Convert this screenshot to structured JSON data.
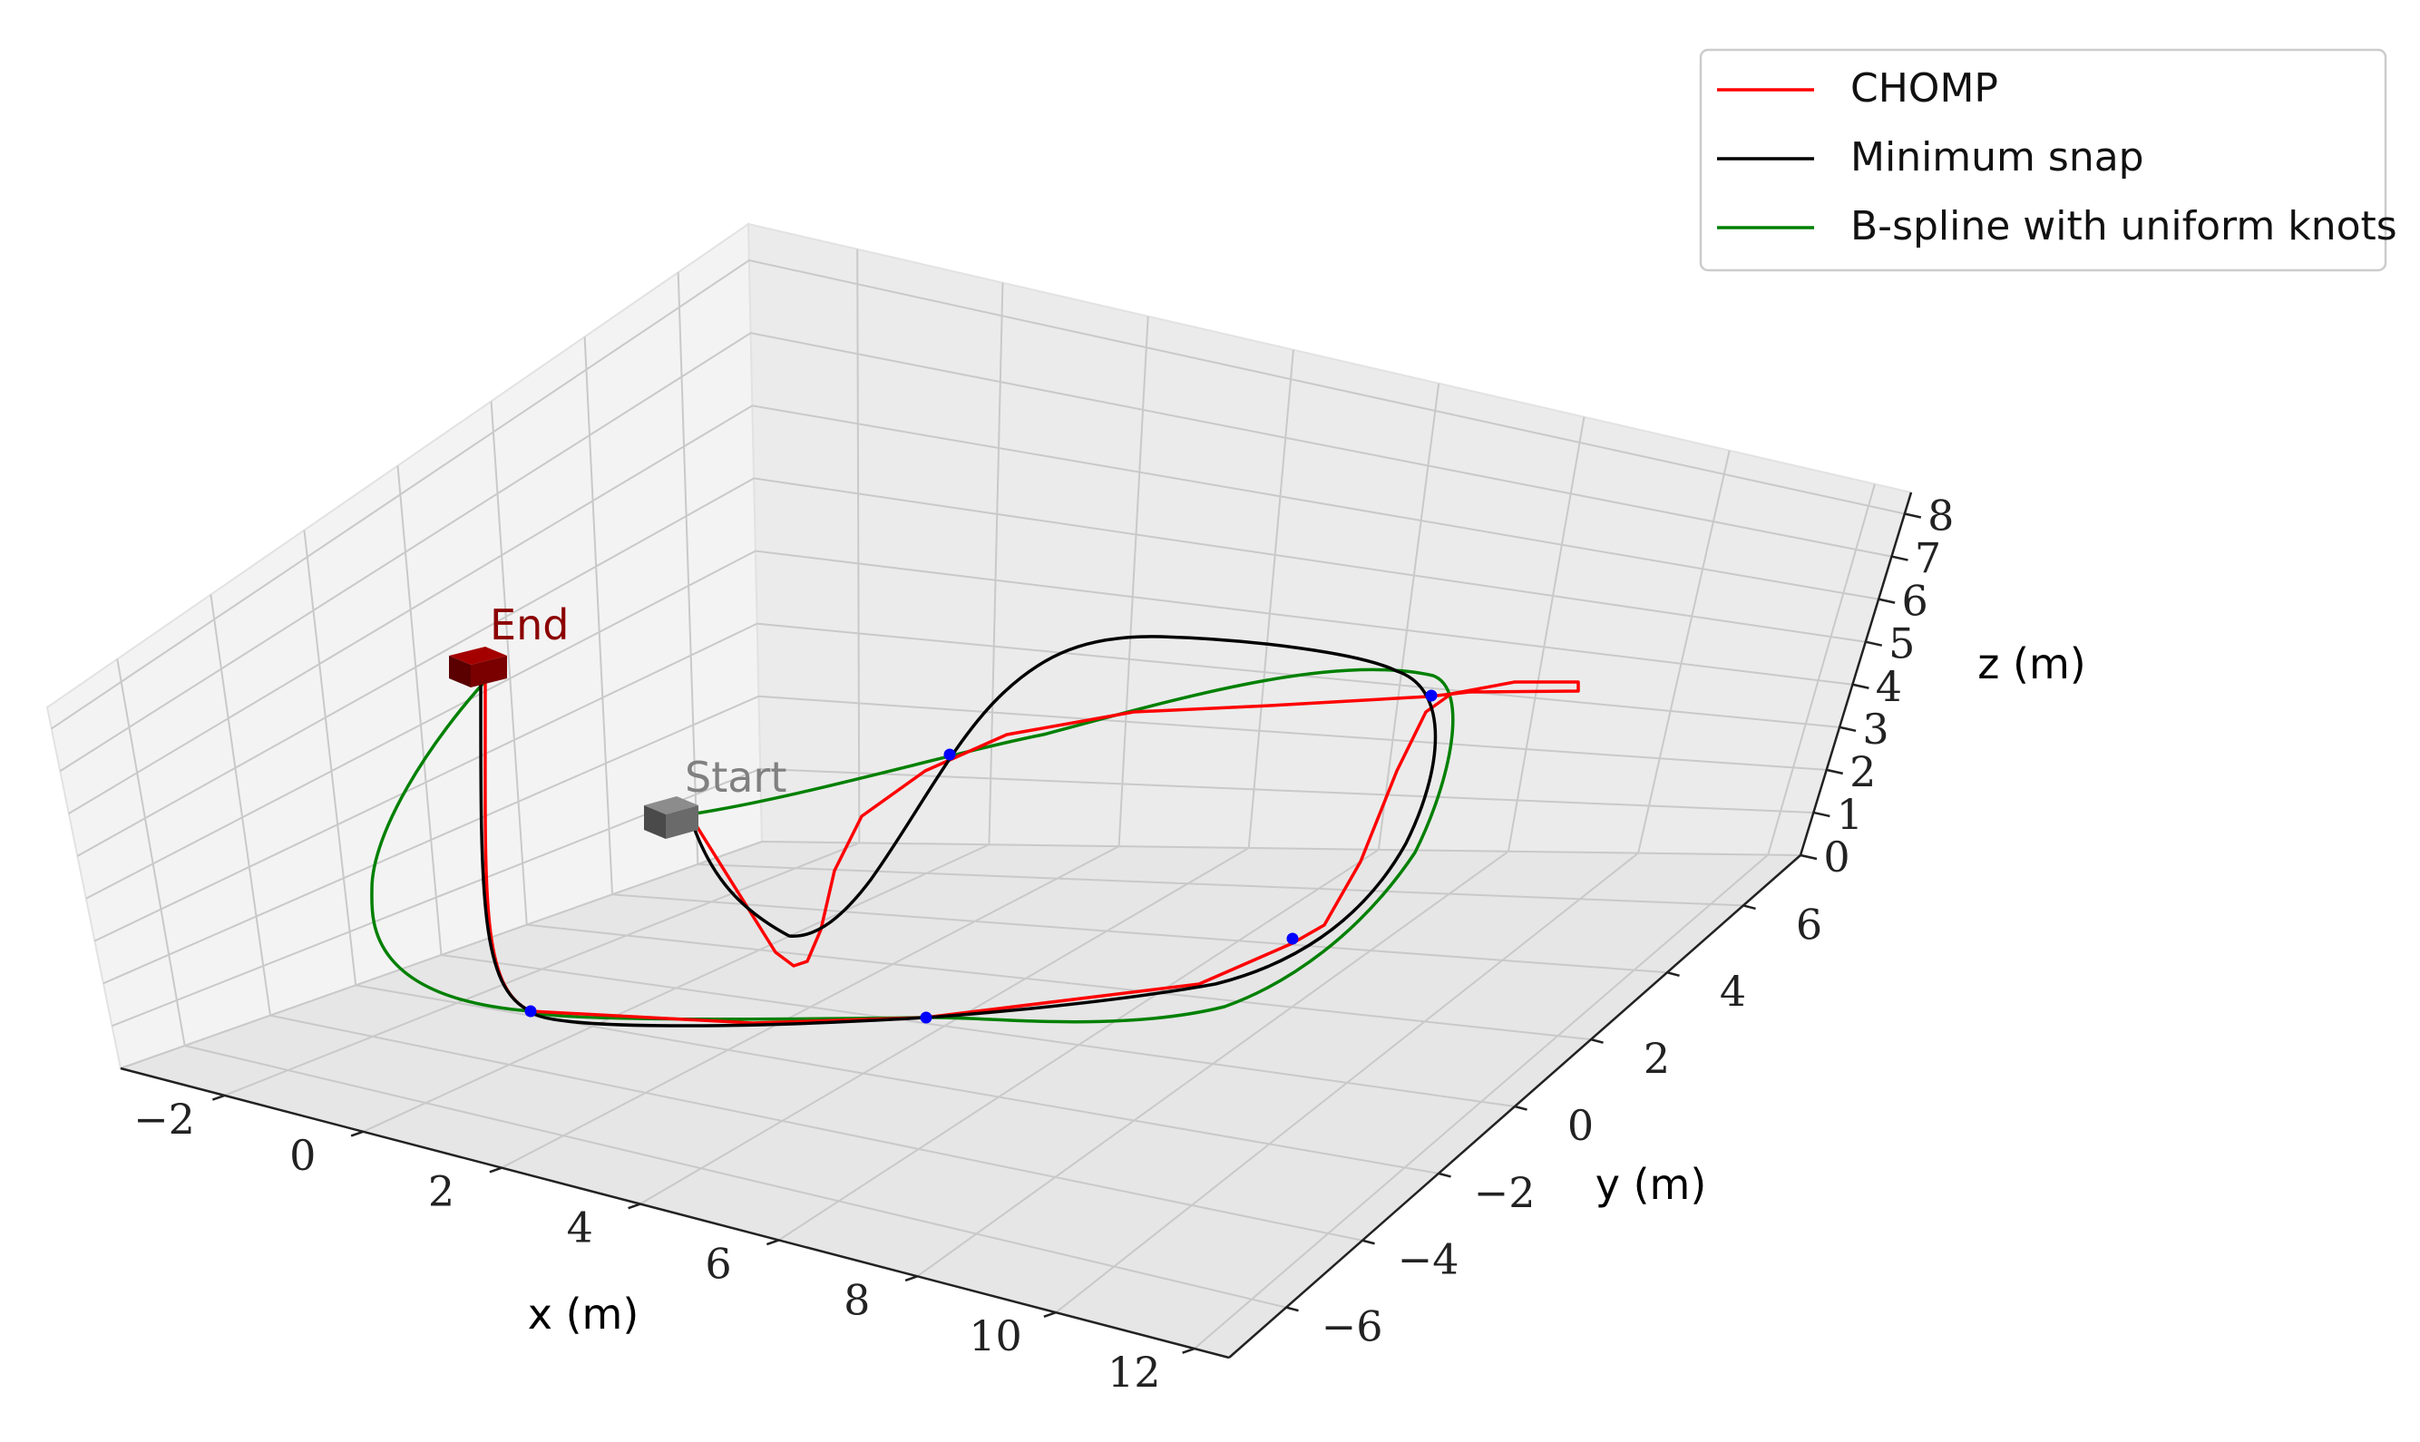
{
  "chart_data": {
    "type": "line3d",
    "title": "",
    "xlabel": "x (m)",
    "ylabel": "y (m)",
    "zlabel": "z (m)",
    "xlim": [
      -3.5,
      12.5
    ],
    "ylim": [
      -7.5,
      7.5
    ],
    "zlim": [
      0,
      8.5
    ],
    "x_ticks": [
      -2,
      0,
      2,
      4,
      6,
      8,
      10,
      12
    ],
    "y_ticks": [
      -6,
      -4,
      -2,
      0,
      2,
      4,
      6
    ],
    "z_ticks": [
      0,
      1,
      2,
      3,
      4,
      5,
      6,
      7,
      8
    ],
    "grid": true,
    "legend": {
      "position": "top-right"
    },
    "series": [
      {
        "name": "CHOMP",
        "color": "#ff0000"
      },
      {
        "name": "Minimum snap",
        "color": "#000000"
      },
      {
        "name": "B-spline with uniform knots",
        "color": "#008000"
      }
    ],
    "waypoints_count": 6,
    "annotations": [
      {
        "text": "Start",
        "color": "#808080"
      },
      {
        "text": "End",
        "color": "#8b0000"
      }
    ]
  }
}
